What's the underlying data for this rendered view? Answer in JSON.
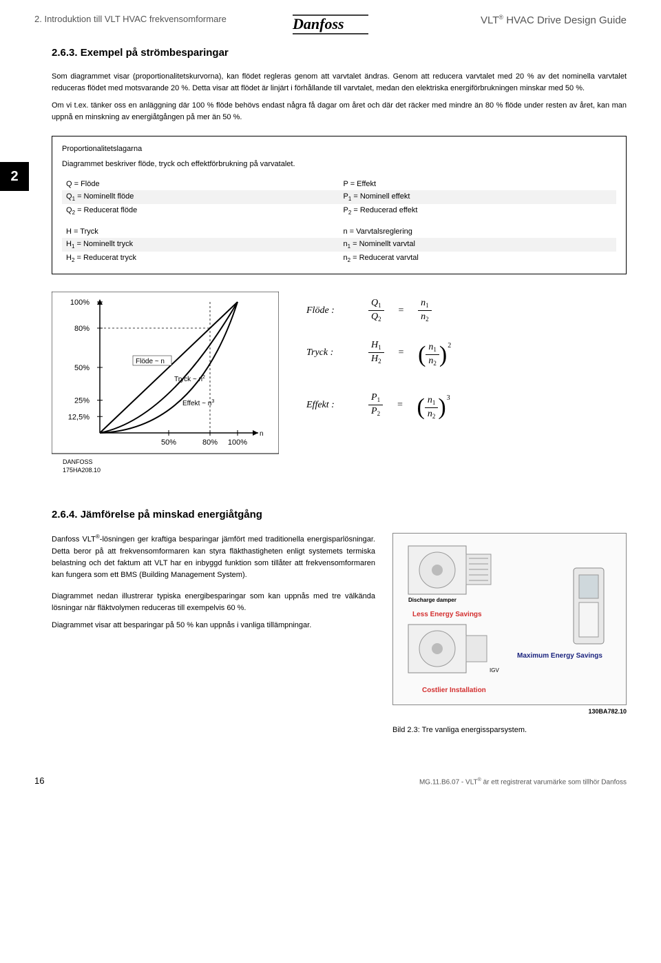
{
  "header": {
    "left": "2. Introduktion till VLT HVAC frekvensomformare",
    "right_prefix": "VLT",
    "right_suffix": " HVAC Drive Design Guide",
    "logo_text": "Danfoss"
  },
  "chapter_number": "2",
  "section_263": {
    "title": "2.6.3. Exempel på strömbesparingar",
    "para": "Som diagrammet visar (proportionalitetskurvorna), kan flödet regleras genom att varvtalet ändras. Genom att reducera varvtalet med 20 % av det nominella varvtalet reduceras flödet med motsvarande 20 %. Detta visar att flödet är linjärt i förhållande till varvtalet, medan den elektriska energiförbrukningen minskar med 50 %.",
    "para2": "Om vi t.ex. tänker oss en anläggning där 100 % flöde behövs endast några få dagar om året och där det räcker med mindre än 80 % flöde under resten av året, kan man uppnå en minskning av energiåtgången på mer än 50 %."
  },
  "law_box": {
    "title": "Proportionalitetslagarna",
    "desc": "Diagrammet beskriver flöde, tryck och effektförbrukning på varvatalet.",
    "rows": [
      {
        "l": "Q = Flöde",
        "r": "P = Effekt",
        "bg": "white"
      },
      {
        "l": "Q<sub>1</sub> = Nominellt flöde",
        "r": "P<sub>1</sub> = Nominell effekt",
        "bg": "grey"
      },
      {
        "l": "Q<sub>2</sub> = Reducerat flöde",
        "r": "P<sub>2</sub> = Reducerad effekt",
        "bg": "white"
      },
      {
        "spacer": true
      },
      {
        "l": "H = Tryck",
        "r": "n = Varvtalsreglering",
        "bg": "white"
      },
      {
        "l": "H<sub>1</sub> = Nominellt tryck",
        "r": "n<sub>1</sub> = Nominellt varvtal",
        "bg": "grey"
      },
      {
        "l": "H<sub>2</sub> = Reducerat tryck",
        "r": "n<sub>2</sub> = Reducerat varvtal",
        "bg": "white"
      }
    ]
  },
  "chart": {
    "y_labels": [
      "100%",
      "80%",
      "50%",
      "25%",
      "12,5%"
    ],
    "y_positions": [
      0,
      20,
      50,
      75,
      87.5
    ],
    "x_labels": [
      "50%",
      "80%",
      "100%"
    ],
    "x_positions": [
      50,
      80,
      100
    ],
    "curve_labels": {
      "flode": "Flöde ~ n",
      "tryck": "Tryck ~ n",
      "effekt": "Effekt ~ n"
    },
    "footer1": "DANFOSS",
    "footer2": "175HA208.10",
    "axis_n": "n",
    "tryck_exp": "2",
    "effekt_exp": "3"
  },
  "equations": {
    "flode_label": "Flöde  :",
    "tryck_label": "Tryck  :",
    "effekt_label": "Effekt :",
    "Q1": "Q",
    "Q2": "Q",
    "H1": "H",
    "H2": "H",
    "P1": "P",
    "P2": "P",
    "n": "n"
  },
  "section_264": {
    "title": "2.6.4. Jämförelse på minskad energiåtgång",
    "para1": "Danfoss VLT®-lösningen ger kraftiga besparingar jämfört med traditionella energisparlösningar. Detta beror på att frekvensomformaren kan styra fläkthastigheten enligt systemets termiska belastning och det faktum att VLT har en inbyggd funktion som tillåter att frekvensomformaren kan fungera som ett BMS (Building Management System).",
    "para2": "Diagrammet nedan illustrerar typiska energibesparingar som kan uppnås med tre välkända lösningar när fläktvolymen reduceras till exempelvis 60 %.",
    "para3": "Diagrammet visar att besparingar på 50 % kan uppnås i vanliga tillämpningar.",
    "fig_ref": "130BA782.10",
    "fig_caption": "Bild 2.3: Tre vanliga energissparsystem.",
    "illus_labels": {
      "discharge": "Discharge damper",
      "less": "Less Energy Savings",
      "max": "Maximum Energy Savings",
      "costlier": "Costlier Installation",
      "igv": "IGV"
    }
  },
  "footer": {
    "page": "16",
    "text": "MG.11.B6.07 - VLT® är ett registrerat varumärke som tillhör Danfoss"
  }
}
